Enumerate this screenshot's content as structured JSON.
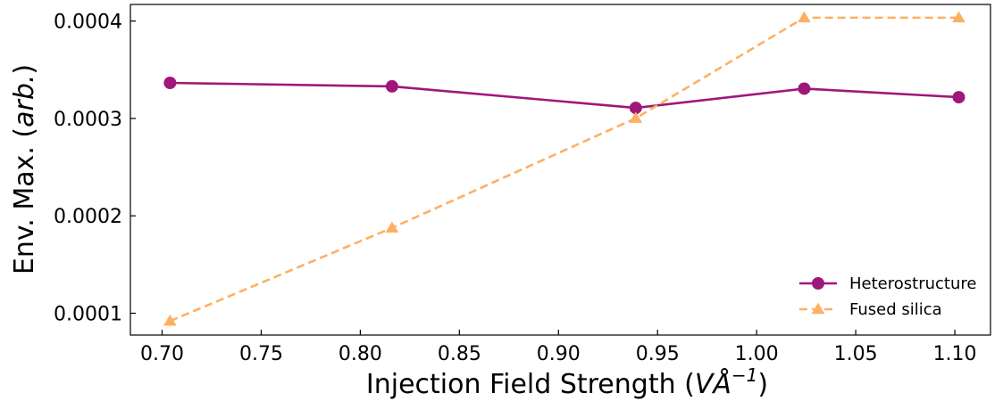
{
  "chart_data": {
    "type": "line",
    "xlabel_main": "Injection Field Strength (",
    "xlabel_unit": "VÅ",
    "xlabel_exp": "−1",
    "xlabel_close": ")",
    "ylabel_main": "Env. Max. (",
    "ylabel_unit": "arb.",
    "ylabel_close": ")",
    "xlim": [
      0.684,
      1.118
    ],
    "ylim": [
      7.76e-05,
      0.000417
    ],
    "xticks": [
      0.7,
      0.75,
      0.8,
      0.85,
      0.9,
      0.95,
      1.0,
      1.05,
      1.1
    ],
    "xtick_labels": [
      "0.70",
      "0.75",
      "0.80",
      "0.85",
      "0.90",
      "0.95",
      "1.00",
      "1.05",
      "1.10"
    ],
    "yticks": [
      0.0001,
      0.0002,
      0.0003,
      0.0004
    ],
    "ytick_labels": [
      "0.0001",
      "0.0002",
      "0.0003",
      "0.0004"
    ],
    "legend_position": "lower-right",
    "grid": false,
    "series": [
      {
        "name": "Heterostructure",
        "color": "#a0177a",
        "marker": "circle",
        "linestyle": "solid",
        "x": [
          0.704,
          0.816,
          0.939,
          1.024,
          1.102
        ],
        "y": [
          0.0003365,
          0.0003329,
          0.0003108,
          0.0003306,
          0.0003218
        ]
      },
      {
        "name": "Fused silica",
        "color": "#fdb063",
        "marker": "triangle",
        "linestyle": "dashed",
        "x": [
          0.704,
          0.816,
          0.939,
          1.024,
          1.102
        ],
        "y": [
          9.2e-05,
          0.0001876,
          0.0003002,
          0.0004034,
          0.0004034
        ]
      }
    ]
  }
}
